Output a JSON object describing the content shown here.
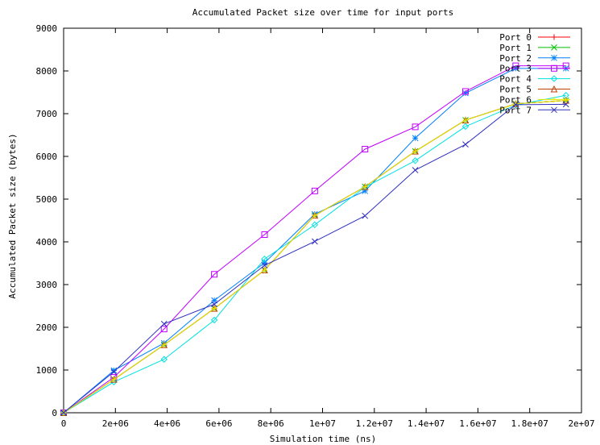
{
  "chart_data": {
    "type": "line",
    "title": "Accumulated Packet size over time for input ports",
    "xlabel": "Simulation time (ns)",
    "ylabel": "Accumulated Packet size (bytes)",
    "xlim": [
      0,
      20000000
    ],
    "ylim": [
      0,
      9000
    ],
    "xticks": [
      {
        "v": 0,
        "label": "0"
      },
      {
        "v": 2000000,
        "label": "2e+06"
      },
      {
        "v": 4000000,
        "label": "4e+06"
      },
      {
        "v": 6000000,
        "label": "6e+06"
      },
      {
        "v": 8000000,
        "label": "8e+06"
      },
      {
        "v": 10000000,
        "label": "1e+07"
      },
      {
        "v": 12000000,
        "label": "1.2e+07"
      },
      {
        "v": 14000000,
        "label": "1.4e+07"
      },
      {
        "v": 16000000,
        "label": "1.6e+07"
      },
      {
        "v": 18000000,
        "label": "1.8e+07"
      },
      {
        "v": 20000000,
        "label": "2e+07"
      }
    ],
    "yticks": [
      {
        "v": 0,
        "label": "0"
      },
      {
        "v": 1000,
        "label": "1000"
      },
      {
        "v": 2000,
        "label": "2000"
      },
      {
        "v": 3000,
        "label": "3000"
      },
      {
        "v": 4000,
        "label": "4000"
      },
      {
        "v": 5000,
        "label": "5000"
      },
      {
        "v": 6000,
        "label": "6000"
      },
      {
        "v": 7000,
        "label": "7000"
      },
      {
        "v": 8000,
        "label": "8000"
      },
      {
        "v": 9000,
        "label": "9000"
      }
    ],
    "grid": false,
    "legend_position": "top-right",
    "x": [
      0,
      1940000,
      3880000,
      5820000,
      7760000,
      9700000,
      11640000,
      13580000,
      15520000,
      17460000,
      19400000
    ],
    "series": [
      {
        "name": "Port 0",
        "color": "#ff0000",
        "marker": "plus",
        "values": [
          0,
          780,
          1590,
          2440,
          3340,
          4620,
          5290,
          6120,
          6850,
          7230,
          7310
        ]
      },
      {
        "name": "Port 1",
        "color": "#00c000",
        "marker": "x",
        "values": [
          0,
          780,
          1590,
          2440,
          3340,
          4620,
          5290,
          6120,
          6850,
          7230,
          7310
        ]
      },
      {
        "name": "Port 2",
        "color": "#0080ff",
        "marker": "star",
        "values": [
          0,
          990,
          1630,
          2630,
          3510,
          4650,
          5190,
          6430,
          7480,
          8060,
          8060
        ]
      },
      {
        "name": "Port 3",
        "color": "#c000ff",
        "marker": "box",
        "values": [
          0,
          830,
          1960,
          3240,
          4170,
          5190,
          6170,
          6690,
          7520,
          8120,
          8120
        ]
      },
      {
        "name": "Port 4",
        "color": "#00e0e0",
        "marker": "diamond",
        "values": [
          0,
          720,
          1250,
          2170,
          3600,
          4400,
          5280,
          5900,
          6700,
          7200,
          7430
        ]
      },
      {
        "name": "Port 5",
        "color": "#c04000",
        "marker": "triangle",
        "values": [
          0,
          780,
          1590,
          2440,
          3340,
          4620,
          5290,
          6120,
          6850,
          7230,
          7310
        ]
      },
      {
        "name": "Port 6",
        "color": "#e8e800",
        "marker": "plus",
        "values": [
          0,
          780,
          1590,
          2440,
          3340,
          4620,
          5290,
          6120,
          6850,
          7230,
          7310
        ]
      },
      {
        "name": "Port 7",
        "color": "#3030c0",
        "marker": "x",
        "values": [
          0,
          960,
          2080,
          2540,
          3450,
          4010,
          4610,
          5680,
          6280,
          7210,
          7220
        ]
      }
    ]
  }
}
